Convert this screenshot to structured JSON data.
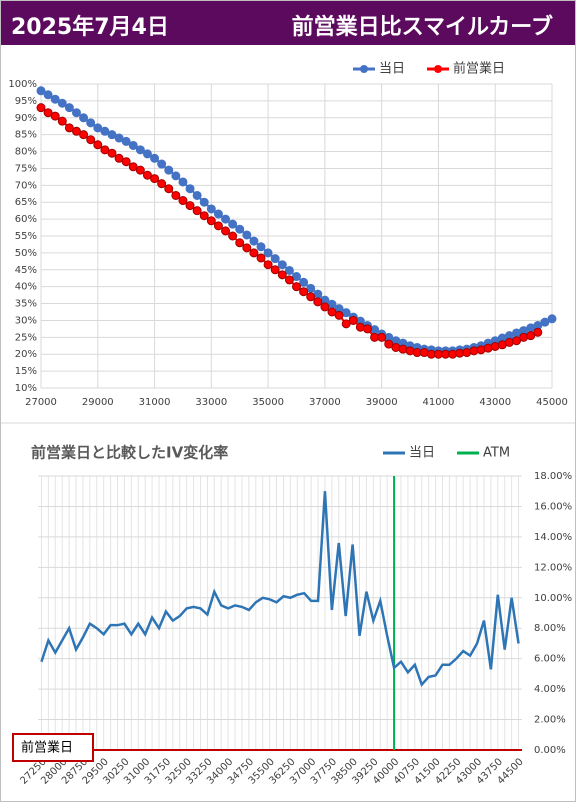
{
  "header": {
    "date": "2025年7月4日",
    "title": "前営業日比スマイルカーブ"
  },
  "chart_data": [
    {
      "type": "line",
      "markers": true,
      "legend": "top-right",
      "grid": true,
      "x": [
        27000,
        27250,
        27500,
        27750,
        28000,
        28250,
        28500,
        28750,
        29000,
        29250,
        29500,
        29750,
        30000,
        30250,
        30500,
        30750,
        31000,
        31250,
        31500,
        31750,
        32000,
        32250,
        32500,
        32750,
        33000,
        33250,
        33500,
        33750,
        34000,
        34250,
        34500,
        34750,
        35000,
        35250,
        35500,
        35750,
        36000,
        36250,
        36500,
        36750,
        37000,
        37250,
        37500,
        37750,
        38000,
        38250,
        38500,
        38750,
        39000,
        39250,
        39500,
        39750,
        40000,
        40250,
        40500,
        40750,
        41000,
        41250,
        41500,
        41750,
        42000,
        42250,
        42500,
        42750,
        43000,
        43250,
        43500,
        43750,
        44000,
        44250,
        44500,
        44750,
        45000
      ],
      "series": [
        {
          "name": "当日",
          "color": "#4472c4",
          "values": [
            98,
            96.8,
            95.5,
            94.3,
            93,
            91.5,
            90,
            88.5,
            87,
            86,
            85,
            84,
            83,
            81.8,
            80.5,
            79.3,
            78,
            76.3,
            74.5,
            72.8,
            71,
            69,
            67,
            65,
            63,
            61.5,
            60,
            58.5,
            57,
            55.3,
            53.5,
            51.8,
            50,
            48.3,
            46.5,
            44.8,
            43,
            41.3,
            39.5,
            37.8,
            36,
            34.8,
            33.5,
            32.3,
            31,
            29.8,
            28.5,
            27.3,
            26,
            25,
            24,
            23.3,
            22.5,
            22,
            21.5,
            21.3,
            21,
            21,
            21,
            21.3,
            21.5,
            22,
            22.5,
            23.3,
            24,
            24.8,
            25.5,
            26.3,
            27,
            27.8,
            28.5,
            29.5,
            30.5
          ]
        },
        {
          "name": "前営業日",
          "color": "#ff0000",
          "values": [
            93,
            91.5,
            90.5,
            89,
            87,
            86,
            85,
            83.5,
            82,
            80.5,
            79.5,
            78,
            77,
            75.5,
            74.5,
            73,
            72,
            70.5,
            69,
            67,
            65.5,
            64,
            62.5,
            61,
            59.5,
            58,
            56.5,
            55,
            53,
            51.5,
            50,
            48.5,
            46.5,
            45,
            43.5,
            42,
            40,
            38.5,
            37,
            35.5,
            34,
            32.5,
            31.5,
            29,
            30,
            28,
            27.5,
            25,
            25,
            23,
            22,
            21.5,
            21,
            20.5,
            20.5,
            20,
            20,
            20,
            20,
            20.3,
            20.5,
            21,
            21.3,
            21.8,
            22.3,
            22.8,
            23.5,
            24,
            25,
            25.5,
            26.5,
            null,
            null
          ]
        }
      ],
      "xlim": [
        27000,
        45000
      ],
      "xticks": [
        27000,
        29000,
        31000,
        33000,
        35000,
        37000,
        39000,
        41000,
        43000,
        45000
      ],
      "ylim": [
        10,
        100
      ],
      "yticks": [
        {
          "value": 10,
          "label": "10%"
        },
        {
          "value": 15,
          "label": "15%"
        },
        {
          "value": 20,
          "label": "20%"
        },
        {
          "value": 25,
          "label": "25%"
        },
        {
          "value": 30,
          "label": "30%"
        },
        {
          "value": 35,
          "label": "35%"
        },
        {
          "value": 40,
          "label": "40%"
        },
        {
          "value": 45,
          "label": "45%"
        },
        {
          "value": 50,
          "label": "50%"
        },
        {
          "value": 55,
          "label": "55%"
        },
        {
          "value": 60,
          "label": "60%"
        },
        {
          "value": 65,
          "label": "65%"
        },
        {
          "value": 70,
          "label": "70%"
        },
        {
          "value": 75,
          "label": "75%"
        },
        {
          "value": 80,
          "label": "80%"
        },
        {
          "value": 85,
          "label": "85%"
        },
        {
          "value": 90,
          "label": "90%"
        },
        {
          "value": 95,
          "label": "95%"
        },
        {
          "value": 100,
          "label": "100%"
        }
      ]
    },
    {
      "type": "line",
      "title": "前営業日と比較したIV変化率",
      "markers": false,
      "legend": "top-right",
      "grid": true,
      "yaxis_position": "right",
      "x_grid": "points",
      "xtick_rotation": -45,
      "x": [
        27250,
        27500,
        27750,
        28000,
        28250,
        28500,
        28750,
        29000,
        29250,
        29500,
        29750,
        30000,
        30250,
        30500,
        30750,
        31000,
        31250,
        31500,
        31750,
        32000,
        32250,
        32500,
        32750,
        33000,
        33250,
        33500,
        33750,
        34000,
        34250,
        34500,
        34750,
        35000,
        35250,
        35500,
        35750,
        36000,
        36250,
        36500,
        36750,
        37000,
        37250,
        37500,
        37750,
        38000,
        38250,
        38500,
        38750,
        39000,
        39250,
        39500,
        39750,
        40000,
        40250,
        40500,
        40750,
        41000,
        41250,
        41500,
        41750,
        42000,
        42250,
        42500,
        42750,
        43000,
        43250,
        43500,
        43750,
        44000,
        44250,
        44500
      ],
      "series": [
        {
          "name": "当日",
          "color": "#2e75b6",
          "values": [
            5.8,
            7.2,
            6.4,
            7.2,
            8.0,
            6.6,
            7.4,
            8.3,
            8.0,
            7.6,
            8.2,
            8.2,
            8.3,
            7.6,
            8.3,
            7.6,
            8.7,
            8.0,
            9.1,
            8.5,
            8.8,
            9.3,
            9.4,
            9.3,
            8.9,
            10.4,
            9.5,
            9.3,
            9.5,
            9.4,
            9.2,
            9.7,
            10.0,
            9.9,
            9.7,
            10.1,
            10.0,
            10.2,
            10.3,
            9.8,
            9.8,
            17.0,
            9.2,
            13.6,
            8.8,
            13.5,
            7.5,
            10.4,
            8.5,
            9.8,
            7.5,
            5.4,
            5.8,
            5.1,
            5.6,
            4.3,
            4.8,
            4.9,
            5.6,
            5.6,
            6.0,
            6.5,
            6.2,
            7.0,
            8.5,
            5.3,
            10.2,
            6.6,
            10.0,
            7.0
          ]
        }
      ],
      "vlines": [
        {
          "name": "ATM",
          "x": 40000,
          "color": "#00b050"
        }
      ],
      "baseline": {
        "label": "前営業日",
        "value": 0,
        "color": "#c00000"
      },
      "xlim": [
        27125,
        44625
      ],
      "xticks": [
        27250,
        28000,
        28750,
        29500,
        30250,
        31000,
        31750,
        32500,
        33250,
        34000,
        34750,
        35500,
        36250,
        37000,
        37750,
        38500,
        39250,
        40000,
        40750,
        41500,
        42250,
        43000,
        43750,
        44500
      ],
      "ylim": [
        0,
        18
      ],
      "yticks": [
        {
          "value": 0,
          "label": "0.00%"
        },
        {
          "value": 2,
          "label": "2.00%"
        },
        {
          "value": 4,
          "label": "4.00%"
        },
        {
          "value": 6,
          "label": "6.00%"
        },
        {
          "value": 8,
          "label": "8.00%"
        },
        {
          "value": 10,
          "label": "10.00%"
        },
        {
          "value": 12,
          "label": "12.00%"
        },
        {
          "value": 14,
          "label": "14.00%"
        },
        {
          "value": 16,
          "label": "16.00%"
        },
        {
          "value": 18,
          "label": "18.00%"
        }
      ]
    }
  ]
}
